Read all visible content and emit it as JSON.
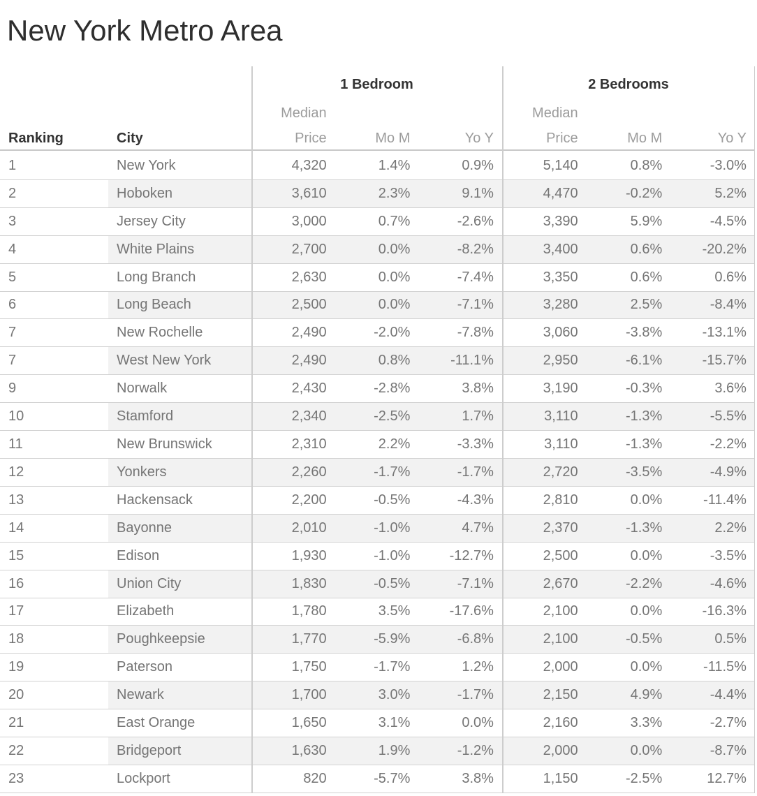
{
  "title": "New York Metro Area",
  "header": {
    "group_1br": "1 Bedroom",
    "group_2br": "2 Bedrooms",
    "ranking": "Ranking",
    "city": "City",
    "median_price": "Median Price",
    "mom": "Mo M",
    "yoy": "Yo Y"
  },
  "colors": {
    "title_text": "#2e2e2e",
    "header_text": "#333333",
    "subheader_text": "#9c9c9c",
    "data_text": "#757575",
    "row_band": "#f2f2f2",
    "gridline": "#d2d2d2",
    "background": "#ffffff"
  },
  "chart_data": {
    "type": "table",
    "title": "New York Metro Area",
    "column_groups": [
      "1 Bedroom",
      "2 Bedrooms"
    ],
    "columns": [
      "Ranking",
      "City",
      "1BR Median Price",
      "1BR Mo M",
      "1BR Yo Y",
      "2BR Median Price",
      "2BR Mo M",
      "2BR Yo Y"
    ],
    "rows": [
      [
        "1",
        "New York",
        "4,320",
        "1.4%",
        "0.9%",
        "5,140",
        "0.8%",
        "-3.0%"
      ],
      [
        "2",
        "Hoboken",
        "3,610",
        "2.3%",
        "9.1%",
        "4,470",
        "-0.2%",
        "5.2%"
      ],
      [
        "3",
        "Jersey City",
        "3,000",
        "0.7%",
        "-2.6%",
        "3,390",
        "5.9%",
        "-4.5%"
      ],
      [
        "4",
        "White Plains",
        "2,700",
        "0.0%",
        "-8.2%",
        "3,400",
        "0.6%",
        "-20.2%"
      ],
      [
        "5",
        "Long Branch",
        "2,630",
        "0.0%",
        "-7.4%",
        "3,350",
        "0.6%",
        "0.6%"
      ],
      [
        "6",
        "Long Beach",
        "2,500",
        "0.0%",
        "-7.1%",
        "3,280",
        "2.5%",
        "-8.4%"
      ],
      [
        "7",
        "New Rochelle",
        "2,490",
        "-2.0%",
        "-7.8%",
        "3,060",
        "-3.8%",
        "-13.1%"
      ],
      [
        "7",
        "West New York",
        "2,490",
        "0.8%",
        "-11.1%",
        "2,950",
        "-6.1%",
        "-15.7%"
      ],
      [
        "9",
        "Norwalk",
        "2,430",
        "-2.8%",
        "3.8%",
        "3,190",
        "-0.3%",
        "3.6%"
      ],
      [
        "10",
        "Stamford",
        "2,340",
        "-2.5%",
        "1.7%",
        "3,110",
        "-1.3%",
        "-5.5%"
      ],
      [
        "11",
        "New Brunswick",
        "2,310",
        "2.2%",
        "-3.3%",
        "3,110",
        "-1.3%",
        "-2.2%"
      ],
      [
        "12",
        "Yonkers",
        "2,260",
        "-1.7%",
        "-1.7%",
        "2,720",
        "-3.5%",
        "-4.9%"
      ],
      [
        "13",
        "Hackensack",
        "2,200",
        "-0.5%",
        "-4.3%",
        "2,810",
        "0.0%",
        "-11.4%"
      ],
      [
        "14",
        "Bayonne",
        "2,010",
        "-1.0%",
        "4.7%",
        "2,370",
        "-1.3%",
        "2.2%"
      ],
      [
        "15",
        "Edison",
        "1,930",
        "-1.0%",
        "-12.7%",
        "2,500",
        "0.0%",
        "-3.5%"
      ],
      [
        "16",
        "Union City",
        "1,830",
        "-0.5%",
        "-7.1%",
        "2,670",
        "-2.2%",
        "-4.6%"
      ],
      [
        "17",
        "Elizabeth",
        "1,780",
        "3.5%",
        "-17.6%",
        "2,100",
        "0.0%",
        "-16.3%"
      ],
      [
        "18",
        "Poughkeepsie",
        "1,770",
        "-5.9%",
        "-6.8%",
        "2,100",
        "-0.5%",
        "0.5%"
      ],
      [
        "19",
        "Paterson",
        "1,750",
        "-1.7%",
        "1.2%",
        "2,000",
        "0.0%",
        "-11.5%"
      ],
      [
        "20",
        "Newark",
        "1,700",
        "3.0%",
        "-1.7%",
        "2,150",
        "4.9%",
        "-4.4%"
      ],
      [
        "21",
        "East Orange",
        "1,650",
        "3.1%",
        "0.0%",
        "2,160",
        "3.3%",
        "-2.7%"
      ],
      [
        "22",
        "Bridgeport",
        "1,630",
        "1.9%",
        "-1.2%",
        "2,000",
        "0.0%",
        "-8.7%"
      ],
      [
        "23",
        "Lockport",
        "820",
        "-5.7%",
        "3.8%",
        "1,150",
        "-2.5%",
        "12.7%"
      ]
    ]
  }
}
